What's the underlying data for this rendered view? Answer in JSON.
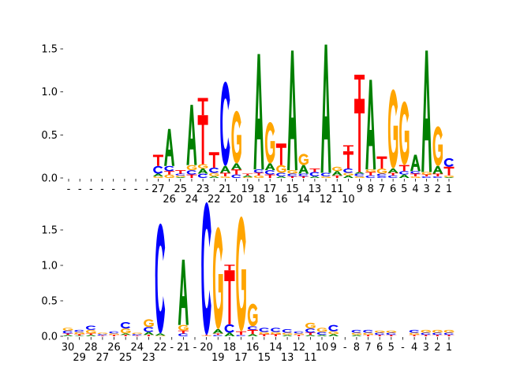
{
  "chart_data": [
    {
      "type": "sequence-logo",
      "panel": "top",
      "ylim": [
        0,
        1.55
      ],
      "yticks": [
        "0.0",
        "0.5",
        "1.0",
        "1.5"
      ],
      "ytick_values": [
        0,
        0.5,
        1.0,
        1.5
      ],
      "colors": {
        "A": "#008000",
        "C": "#0000ff",
        "G": "#ffa500",
        "T": "#ff0000"
      },
      "xlabels": [
        "-",
        "-",
        "-",
        "-",
        "-",
        "-",
        "-",
        "-",
        "27",
        "26",
        "25",
        "24",
        "23",
        "22",
        "21",
        "20",
        "19",
        "18",
        "17",
        "16",
        "15",
        "14",
        "13",
        "12",
        "11",
        "10",
        "9",
        "8",
        "7",
        "6",
        "5",
        "4",
        "3",
        "2",
        "1"
      ],
      "columns": [
        [],
        [],
        [],
        [],
        [],
        [],
        [],
        [],
        [
          [
            "G",
            0.02
          ],
          [
            "A",
            0.03
          ],
          [
            "C",
            0.09
          ],
          [
            "T",
            0.13
          ]
        ],
        [
          [
            "G",
            0.04
          ],
          [
            "T",
            0.04
          ],
          [
            "C",
            0.06
          ],
          [
            "A",
            0.43
          ]
        ],
        [
          [
            "A",
            0.01
          ],
          [
            "G",
            0.02
          ],
          [
            "C",
            0.02
          ],
          [
            "T",
            0.04
          ]
        ],
        [
          [
            "T",
            0.04
          ],
          [
            "C",
            0.05
          ],
          [
            "G",
            0.06
          ],
          [
            "A",
            0.7
          ]
        ],
        [
          [
            "C",
            0.05
          ],
          [
            "A",
            0.06
          ],
          [
            "G",
            0.05
          ],
          [
            "T",
            0.57
          ],
          [
            "T",
            0.2
          ]
        ],
        [
          [
            "A",
            0.02
          ],
          [
            "G",
            0.04
          ],
          [
            "C",
            0.06
          ],
          [
            "T",
            0.18
          ]
        ],
        [
          [
            "G",
            0.02
          ],
          [
            "T",
            0.04
          ],
          [
            "A",
            0.08
          ],
          [
            "C",
            0.98
          ]
        ],
        [
          [
            "C",
            0.04
          ],
          [
            "T",
            0.06
          ],
          [
            "A",
            0.07
          ],
          [
            "G",
            0.61
          ]
        ],
        [
          [
            "G",
            0.01
          ],
          [
            "A",
            0.02
          ],
          [
            "T",
            0.02
          ]
        ],
        [
          [
            "G",
            0.03
          ],
          [
            "T",
            0.03
          ],
          [
            "C",
            0.04
          ],
          [
            "A",
            1.34
          ]
        ],
        [
          [
            "T",
            0.04
          ],
          [
            "C",
            0.05
          ],
          [
            "A",
            0.08
          ],
          [
            "G",
            0.48
          ]
        ],
        [
          [
            "A",
            0.02
          ],
          [
            "C",
            0.04
          ],
          [
            "G",
            0.09
          ],
          [
            "T",
            0.25
          ]
        ],
        [
          [
            "T",
            0.02
          ],
          [
            "C",
            0.03
          ],
          [
            "G",
            0.04
          ],
          [
            "A",
            1.39
          ]
        ],
        [
          [
            "T",
            0.02
          ],
          [
            "C",
            0.03
          ],
          [
            "A",
            0.1
          ],
          [
            "G",
            0.13
          ]
        ],
        [
          [
            "A",
            0.02
          ],
          [
            "C",
            0.05
          ],
          [
            "T",
            0.04
          ]
        ],
        [
          [
            "G",
            0.02
          ],
          [
            "C",
            0.04
          ],
          [
            "A",
            1.49
          ]
        ],
        [
          [
            "T",
            0.03
          ],
          [
            "A",
            0.05
          ],
          [
            "G",
            0.05
          ]
        ],
        [
          [
            "A",
            0.03
          ],
          [
            "G",
            0.03
          ],
          [
            "C",
            0.05
          ],
          [
            "T",
            0.2
          ],
          [
            "T",
            0.07
          ]
        ],
        [
          [
            "G",
            0.02
          ],
          [
            "C",
            0.03
          ],
          [
            "A",
            0.02
          ],
          [
            "T",
            0.85
          ],
          [
            "T",
            0.28
          ]
        ],
        [
          [
            "C",
            0.03
          ],
          [
            "T",
            0.04
          ],
          [
            "G",
            0.03
          ],
          [
            "A",
            1.04
          ]
        ],
        [
          [
            "C",
            0.02
          ],
          [
            "C",
            0.03
          ],
          [
            "G",
            0.06
          ],
          [
            "T",
            0.14
          ]
        ],
        [
          [
            "C",
            0.03
          ],
          [
            "T",
            0.03
          ],
          [
            "A",
            0.05
          ],
          [
            "G",
            0.92
          ]
        ],
        [
          [
            "A",
            0.04
          ],
          [
            "C",
            0.04
          ],
          [
            "T",
            0.07
          ],
          [
            "G",
            0.74
          ]
        ],
        [
          [
            "G",
            0.02
          ],
          [
            "T",
            0.03
          ],
          [
            "C",
            0.03
          ],
          [
            "A",
            0.19
          ]
        ],
        [
          [
            "C",
            0.02
          ],
          [
            "T",
            0.02
          ],
          [
            "G",
            0.03
          ],
          [
            "A",
            1.41
          ]
        ],
        [
          [
            "C",
            0.02
          ],
          [
            "T",
            0.03
          ],
          [
            "A",
            0.09
          ],
          [
            "G",
            0.46
          ]
        ],
        [
          [
            "A",
            0.01
          ],
          [
            "G",
            0.02
          ],
          [
            "T",
            0.1
          ],
          [
            "C",
            0.1
          ]
        ]
      ]
    },
    {
      "type": "sequence-logo",
      "panel": "bottom",
      "ylim": [
        0,
        1.9
      ],
      "yticks": [
        "0.0",
        "0.5",
        "1.0",
        "1.5"
      ],
      "ytick_values": [
        0,
        0.5,
        1.0,
        1.5
      ],
      "colors": {
        "A": "#008000",
        "C": "#0000ff",
        "G": "#ffa500",
        "T": "#ff0000"
      },
      "xlabels": [
        "30",
        "29",
        "28",
        "27",
        "26",
        "25",
        "24",
        "23",
        "22",
        "-",
        "21",
        "-",
        "20",
        "19",
        "18",
        "17",
        "16",
        "15",
        "14",
        "13",
        "12",
        "11",
        "10",
        "9",
        "-",
        "8",
        "7",
        "6",
        "5",
        "-",
        "4",
        "3",
        "2",
        "1"
      ],
      "columns": [
        [
          [
            "A",
            0.02
          ],
          [
            "T",
            0.02
          ],
          [
            "C",
            0.04
          ],
          [
            "G",
            0.04
          ]
        ],
        [
          [
            "A",
            0.01
          ],
          [
            "T",
            0.02
          ],
          [
            "G",
            0.03
          ],
          [
            "C",
            0.03
          ]
        ],
        [
          [
            "A",
            0.02
          ],
          [
            "T",
            0.02
          ],
          [
            "G",
            0.05
          ],
          [
            "C",
            0.06
          ]
        ],
        [
          [
            "T",
            0.01
          ],
          [
            "C",
            0.02
          ],
          [
            "G",
            0.02
          ]
        ],
        [
          [
            "T",
            0.02
          ],
          [
            "G",
            0.02
          ],
          [
            "C",
            0.03
          ]
        ],
        [
          [
            "T",
            0.02
          ],
          [
            "A",
            0.02
          ],
          [
            "G",
            0.07
          ],
          [
            "C",
            0.09
          ]
        ],
        [
          [
            "T",
            0.01
          ],
          [
            "C",
            0.02
          ],
          [
            "G",
            0.02
          ]
        ],
        [
          [
            "T",
            0.02
          ],
          [
            "A",
            0.04
          ],
          [
            "C",
            0.07
          ],
          [
            "G",
            0.11
          ]
        ],
        [
          [
            "G",
            0.01
          ],
          [
            "A",
            0.03
          ],
          [
            "C",
            1.55
          ]
        ],
        [],
        [
          [
            "C",
            0.04
          ],
          [
            "T",
            0.04
          ],
          [
            "G",
            0.08
          ],
          [
            "A",
            0.92
          ]
        ],
        [],
        [
          [
            "G",
            0.01
          ],
          [
            "T",
            0.01
          ],
          [
            "C",
            1.87
          ]
        ],
        [
          [
            "C",
            0.02
          ],
          [
            "T",
            0.02
          ],
          [
            "A",
            0.06
          ],
          [
            "G",
            1.44
          ]
        ],
        [
          [
            "A",
            0.05
          ],
          [
            "C",
            0.12
          ],
          [
            "T",
            0.76
          ],
          [
            "T",
            0.08
          ]
        ],
        [
          [
            "C",
            0.02
          ],
          [
            "T",
            0.05
          ],
          [
            "G",
            1.62
          ]
        ],
        [
          [
            "A",
            0.03
          ],
          [
            "T",
            0.06
          ],
          [
            "C",
            0.05
          ],
          [
            "G",
            0.32
          ]
        ],
        [
          [
            "T",
            0.03
          ],
          [
            "G",
            0.03
          ],
          [
            "C",
            0.06
          ]
        ],
        [
          [
            "T",
            0.03
          ],
          [
            "G",
            0.03
          ],
          [
            "C",
            0.06
          ]
        ],
        [
          [
            "A",
            0.02
          ],
          [
            "G",
            0.03
          ],
          [
            "C",
            0.05
          ]
        ],
        [
          [
            "T",
            0.02
          ],
          [
            "G",
            0.02
          ],
          [
            "C",
            0.03
          ]
        ],
        [
          [
            "A",
            0.02
          ],
          [
            "T",
            0.03
          ],
          [
            "C",
            0.06
          ],
          [
            "G",
            0.08
          ]
        ],
        [
          [
            "A",
            0.02
          ],
          [
            "C",
            0.04
          ],
          [
            "G",
            0.06
          ]
        ],
        [
          [
            "A",
            0.03
          ],
          [
            "G",
            0.04
          ],
          [
            "C",
            0.09
          ]
        ],
        [],
        [
          [
            "A",
            0.02
          ],
          [
            "G",
            0.03
          ],
          [
            "C",
            0.04
          ]
        ],
        [
          [
            "T",
            0.02
          ],
          [
            "G",
            0.03
          ],
          [
            "C",
            0.04
          ]
        ],
        [
          [
            "T",
            0.02
          ],
          [
            "C",
            0.03
          ],
          [
            "G",
            0.03
          ]
        ],
        [
          [
            "T",
            0.02
          ],
          [
            "C",
            0.03
          ],
          [
            "G",
            0.03
          ]
        ],
        [],
        [
          [
            "T",
            0.02
          ],
          [
            "G",
            0.03
          ],
          [
            "C",
            0.04
          ]
        ],
        [
          [
            "T",
            0.02
          ],
          [
            "C",
            0.03
          ],
          [
            "G",
            0.04
          ]
        ],
        [
          [
            "T",
            0.02
          ],
          [
            "C",
            0.03
          ],
          [
            "G",
            0.04
          ]
        ],
        [
          [
            "T",
            0.02
          ],
          [
            "C",
            0.03
          ],
          [
            "G",
            0.04
          ]
        ]
      ]
    }
  ]
}
